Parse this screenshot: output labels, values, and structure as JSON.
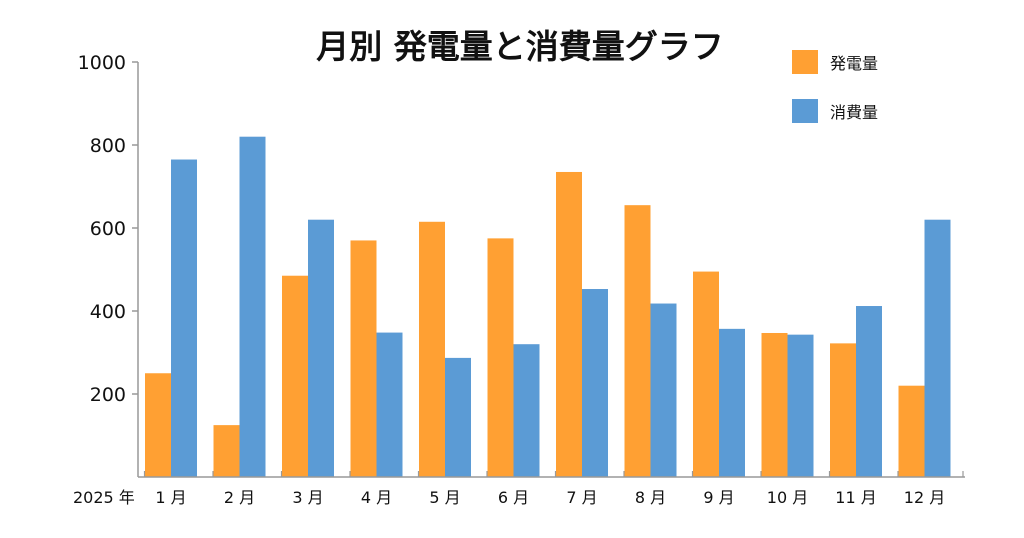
{
  "chart_data": {
    "type": "bar",
    "title": "月別 発電量と消費量グラフ",
    "year_label": "2025 年",
    "categories": [
      "1 月",
      "2 月",
      "3 月",
      "4 月",
      "5 月",
      "6 月",
      "7 月",
      "8 月",
      "9 月",
      "10 月",
      "11 月",
      "12 月"
    ],
    "series": [
      {
        "name": "発電量",
        "color": "#ffa033",
        "values": [
          250,
          125,
          485,
          570,
          615,
          575,
          735,
          655,
          495,
          347,
          322,
          220
        ]
      },
      {
        "name": "消費量",
        "color": "#5b9bd5",
        "values": [
          765,
          820,
          620,
          348,
          287,
          320,
          453,
          418,
          357,
          343,
          412,
          620
        ]
      }
    ],
    "ylim": [
      0,
      1000
    ],
    "yticks": [
      200,
      400,
      600,
      800,
      1000
    ],
    "grid": false,
    "legend_position": "top-right"
  }
}
